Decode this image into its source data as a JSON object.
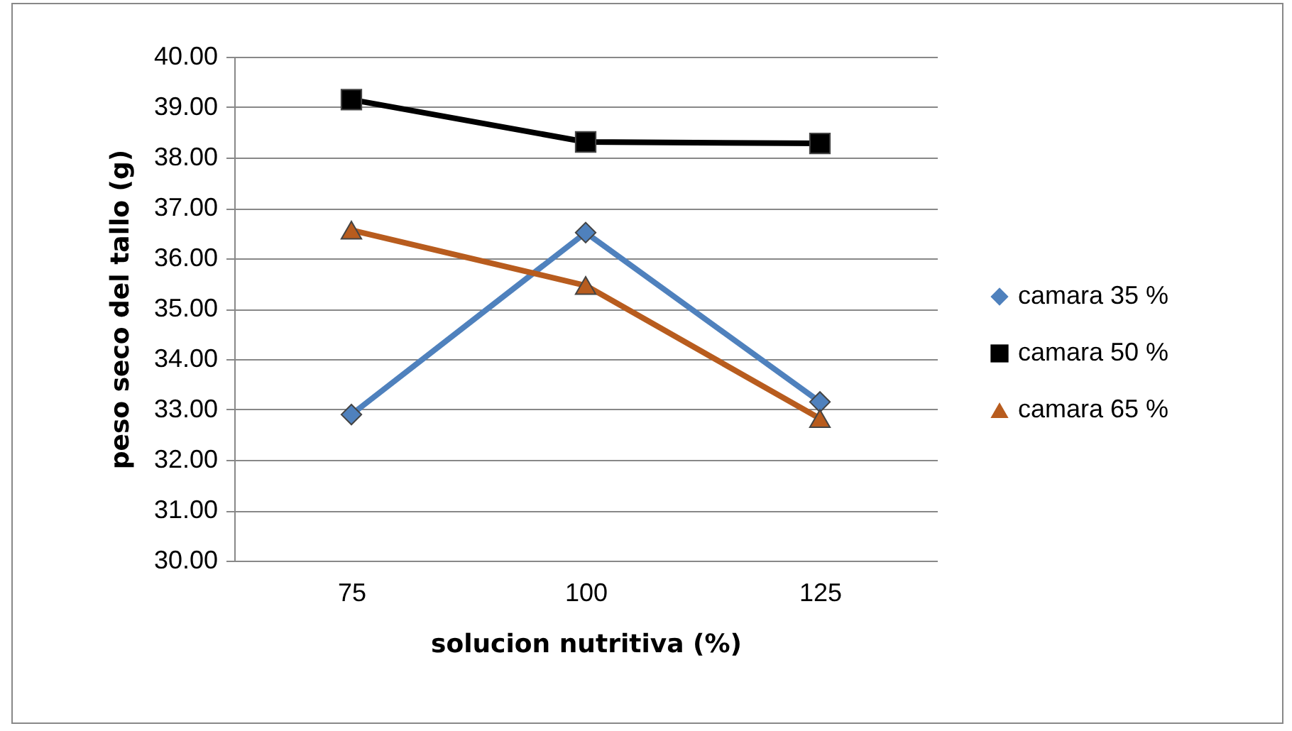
{
  "chart_data": {
    "type": "line",
    "xlabel": "solucion nutritiva (%)",
    "ylabel": "peso seco del tallo (g)",
    "categories": [
      "75",
      "100",
      "125"
    ],
    "series": [
      {
        "name": "camara 35 %",
        "color": "#4f81bd",
        "marker": "diamond",
        "values": [
          32.9,
          36.51,
          33.15
        ]
      },
      {
        "name": "camara 50 %",
        "color": "#000000",
        "marker": "square",
        "values": [
          39.15,
          38.31,
          38.28
        ]
      },
      {
        "name": "camara 65 %",
        "color": "#b85c1e",
        "marker": "triangle",
        "values": [
          36.56,
          35.46,
          32.82
        ]
      }
    ],
    "ylim": [
      30,
      40
    ],
    "yticks": [
      {
        "value": 30,
        "label": "30.00"
      },
      {
        "value": 31,
        "label": "31.00"
      },
      {
        "value": 32,
        "label": "32.00"
      },
      {
        "value": 33,
        "label": "33.00"
      },
      {
        "value": 34,
        "label": "34.00"
      },
      {
        "value": 35,
        "label": "35.00"
      },
      {
        "value": 36,
        "label": "36.00"
      },
      {
        "value": 37,
        "label": "37.00"
      },
      {
        "value": 38,
        "label": "38.00"
      },
      {
        "value": 39,
        "label": "39.00"
      },
      {
        "value": 40,
        "label": "40.00"
      }
    ],
    "grid": "y",
    "legend": "right"
  }
}
